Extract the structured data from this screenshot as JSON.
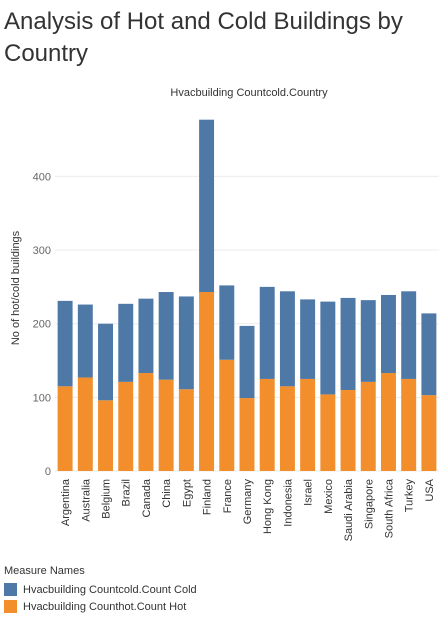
{
  "title": "Analysis of Hot and Cold Buildings by Country",
  "legend": {
    "title": "Measure Names",
    "items": [
      {
        "label": "Hvacbuilding Countcold.Count Cold",
        "color": "#4e79a7"
      },
      {
        "label": "Hvacbuilding Counthot.Count Hot",
        "color": "#f28e2b"
      }
    ]
  },
  "chart_data": {
    "type": "bar",
    "stacked": true,
    "title": "Hvacbuilding Countcold.Country",
    "xlabel": "",
    "ylabel": "No of hot/cold buildings",
    "ylim": [
      0,
      490
    ],
    "yticks": [
      0,
      100,
      200,
      300,
      400
    ],
    "grid": true,
    "categories": [
      "Argentina",
      "Australia",
      "Belgium",
      "Brazil",
      "Canada",
      "China",
      "Egypt",
      "Finland",
      "France",
      "Germany",
      "Hong Kong",
      "Indonesia",
      "Israel",
      "Mexico",
      "Saudi Arabia",
      "Singapore",
      "South Africa",
      "Turkey",
      "USA"
    ],
    "series": [
      {
        "name": "Hvacbuilding Counthot.Count Hot",
        "color": "#f28e2b",
        "values": [
          115,
          127,
          96,
          121,
          133,
          124,
          111,
          243,
          151,
          99,
          125,
          115,
          125,
          104,
          110,
          121,
          133,
          125,
          103
        ]
      },
      {
        "name": "Hvacbuilding Countcold.Count Cold",
        "color": "#4e79a7",
        "values": [
          116,
          99,
          104,
          106,
          101,
          119,
          126,
          234,
          101,
          98,
          125,
          129,
          108,
          126,
          125,
          111,
          106,
          119,
          111
        ]
      }
    ]
  }
}
